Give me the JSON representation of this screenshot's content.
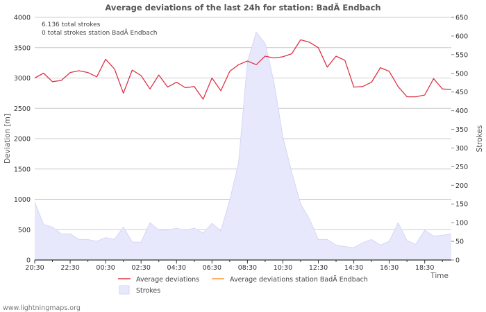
{
  "chart_data": {
    "type": "line",
    "title": "Average deviations of the last 24h for station: BadÃ Endbach",
    "xlabel": "Time",
    "ylabel": "Deviation  [m]",
    "y2label": "Strokes",
    "ylim": [
      0,
      4000
    ],
    "y2lim": [
      0,
      650
    ],
    "yticks": [
      "0",
      "500",
      "1000",
      "1500",
      "2000",
      "2500",
      "3000",
      "3500",
      "4000"
    ],
    "y2ticks": [
      "0",
      "50",
      "100",
      "150",
      "200",
      "250",
      "300",
      "350",
      "400",
      "450",
      "500",
      "550",
      "600",
      "650"
    ],
    "xtick_labels": [
      "20:30",
      "22:30",
      "00:30",
      "02:30",
      "04:30",
      "06:30",
      "08:30",
      "10:30",
      "12:30",
      "14:30",
      "16:30",
      "18:30"
    ],
    "annotations": [
      "6.136 total strokes",
      "0 total strokes station BadÃ Endbach"
    ],
    "legend": {
      "position": "bottom",
      "average": "Average deviations",
      "station": "Average deviations station BadÃ Endbach",
      "strokes": "Strokes"
    },
    "credit": "www.lightningmaps.org",
    "colors": {
      "average": "#dd3344",
      "station": "#ff9933",
      "strokes": "#e8e8fc",
      "strokes_edge": "#d5d5f5",
      "grid": "#cccccc"
    },
    "series": [
      {
        "name": "Average deviations",
        "axis": "left",
        "x": [
          0,
          0.5,
          1,
          1.5,
          2,
          2.5,
          3,
          3.5,
          4,
          4.5,
          5,
          5.5,
          6,
          6.5,
          7,
          7.5,
          8,
          8.5,
          9,
          9.5,
          10,
          10.5,
          11,
          11.5,
          12,
          12.5,
          13,
          13.5,
          14,
          14.5,
          15,
          15.5,
          16,
          16.5,
          17,
          17.5,
          18,
          18.5,
          19,
          19.5,
          20,
          20.5,
          21,
          21.5,
          22,
          22.5,
          23,
          23.5
        ],
        "values": [
          3000,
          3080,
          2940,
          2960,
          3090,
          3120,
          3090,
          3020,
          3310,
          3150,
          2750,
          3130,
          3040,
          2820,
          3050,
          2850,
          2930,
          2840,
          2860,
          2650,
          3000,
          2790,
          3110,
          3220,
          3280,
          3220,
          3360,
          3330,
          3350,
          3400,
          3630,
          3590,
          3500,
          3180,
          3360,
          3290,
          2850,
          2860,
          2930,
          3170,
          3110,
          2860,
          2690,
          2690,
          2720,
          2990,
          2820,
          2810
        ]
      },
      {
        "name": "Average deviations station BadÃ Endbach",
        "axis": "left",
        "x": [],
        "values": []
      },
      {
        "name": "Strokes",
        "axis": "right",
        "type": "area",
        "x": [
          0,
          0.5,
          1,
          1.5,
          2,
          2.5,
          3,
          3.5,
          4,
          4.5,
          5,
          5.5,
          6,
          6.5,
          7,
          7.5,
          8,
          8.5,
          9,
          9.5,
          10,
          10.5,
          11,
          11.5,
          12,
          12.5,
          13,
          13.5,
          14,
          14.5,
          15,
          15.5,
          16,
          16.5,
          17,
          17.5,
          18,
          18.5,
          19,
          19.5,
          20,
          20.5,
          21,
          21.5,
          22,
          22.5,
          23,
          23.5
        ],
        "values": [
          155,
          95,
          88,
          70,
          70,
          55,
          55,
          50,
          60,
          55,
          88,
          48,
          48,
          100,
          80,
          80,
          85,
          80,
          85,
          72,
          98,
          78,
          160,
          260,
          530,
          610,
          580,
          475,
          330,
          235,
          150,
          110,
          55,
          55,
          40,
          36,
          33,
          46,
          55,
          40,
          50,
          100,
          52,
          42,
          80,
          64,
          66,
          70
        ]
      }
    ]
  }
}
